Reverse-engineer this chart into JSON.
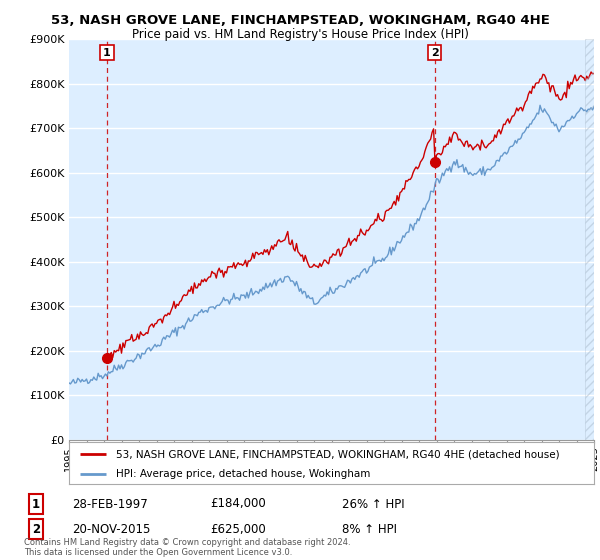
{
  "title": "53, NASH GROVE LANE, FINCHAMPSTEAD, WOKINGHAM, RG40 4HE",
  "subtitle": "Price paid vs. HM Land Registry's House Price Index (HPI)",
  "legend_line1": "53, NASH GROVE LANE, FINCHAMPSTEAD, WOKINGHAM, RG40 4HE (detached house)",
  "legend_line2": "HPI: Average price, detached house, Wokingham",
  "footnote": "Contains HM Land Registry data © Crown copyright and database right 2024.\nThis data is licensed under the Open Government Licence v3.0.",
  "transaction1_label": "1",
  "transaction1_date": "28-FEB-1997",
  "transaction1_price": "£184,000",
  "transaction1_hpi": "26% ↑ HPI",
  "transaction2_label": "2",
  "transaction2_date": "20-NOV-2015",
  "transaction2_price": "£625,000",
  "transaction2_hpi": "8% ↑ HPI",
  "transaction1_year": 1997.17,
  "transaction2_year": 2015.9,
  "transaction1_value": 184000,
  "transaction2_value": 625000,
  "ylim": [
    0,
    900000
  ],
  "xlim_start": 1995,
  "xlim_end": 2025,
  "price_line_color": "#cc0000",
  "hpi_line_color": "#6699cc",
  "plot_bg_color": "#ddeeff",
  "grid_color": "#ffffff",
  "dashed_line_color": "#cc0000",
  "marker_color": "#cc0000",
  "hpi_seed": 42,
  "hpi_noise_std": 5000,
  "price_noise_std": 6000
}
